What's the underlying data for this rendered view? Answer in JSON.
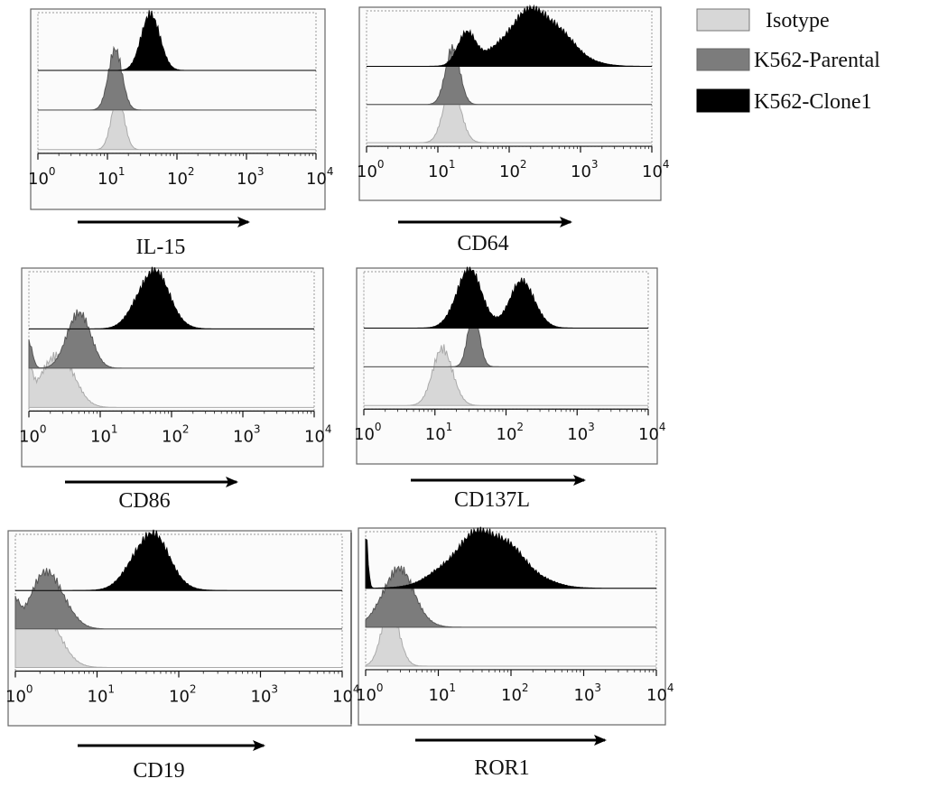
{
  "chart_data": {
    "type": "histogram-overlay",
    "x_scale": "log",
    "xlim": [
      1,
      10000
    ],
    "x_ticks": [
      {
        "base": "10",
        "exp": "0"
      },
      {
        "base": "10",
        "exp": "1"
      },
      {
        "base": "10",
        "exp": "2"
      },
      {
        "base": "10",
        "exp": "3"
      },
      {
        "base": "10",
        "exp": "4"
      }
    ],
    "legend": [
      {
        "name": "Isotype",
        "color": "#d7d7d7"
      },
      {
        "name": "K562-Parental",
        "color": "#7c7c7c"
      },
      {
        "name": "K562-Clone1",
        "color": "#000000"
      }
    ],
    "panels": [
      {
        "label": "IL-15",
        "series": {
          "isotype": {
            "peaks": [
              [
                14,
                0.9,
                0.09
              ]
            ]
          },
          "parental": {
            "peaks": [
              [
                13,
                0.95,
                0.1
              ]
            ]
          },
          "clone1": {
            "peaks": [
              [
                42,
                0.95,
                0.13
              ]
            ]
          }
        }
      },
      {
        "label": "CD64",
        "series": {
          "isotype": {
            "peaks": [
              [
                16,
                0.95,
                0.12
              ]
            ]
          },
          "parental": {
            "peaks": [
              [
                16,
                0.95,
                0.1
              ]
            ]
          },
          "clone1": {
            "peaks": [
              [
                25,
                0.55,
                0.12
              ],
              [
                230,
                0.95,
                0.4
              ]
            ]
          }
        }
      },
      {
        "label": "CD86",
        "series": {
          "isotype": {
            "peaks": [
              [
                2.5,
                0.9,
                0.22
              ],
              [
                1.0,
                0.5,
                0.05
              ]
            ]
          },
          "parental": {
            "peaks": [
              [
                5,
                0.95,
                0.16
              ],
              [
                1.0,
                0.45,
                0.05
              ]
            ]
          },
          "clone1": {
            "peaks": [
              [
                55,
                0.95,
                0.22
              ]
            ]
          }
        }
      },
      {
        "label": "CD137L",
        "series": {
          "isotype": {
            "peaks": [
              [
                13,
                0.95,
                0.14
              ]
            ]
          },
          "parental": {
            "peaks": [
              [
                35,
                0.95,
                0.08
              ]
            ]
          },
          "clone1": {
            "peaks": [
              [
                30,
                0.95,
                0.18
              ],
              [
                170,
                0.75,
                0.18
              ]
            ]
          }
        }
      },
      {
        "label": "CD19",
        "series": {
          "isotype": {
            "peaks": [
              [
                2,
                0.95,
                0.22
              ],
              [
                1.0,
                0.55,
                0.05
              ]
            ]
          },
          "parental": {
            "peaks": [
              [
                2.5,
                0.95,
                0.2
              ],
              [
                1.0,
                0.4,
                0.05
              ]
            ]
          },
          "clone1": {
            "peaks": [
              [
                45,
                0.95,
                0.22
              ]
            ]
          }
        }
      },
      {
        "label": "ROR1",
        "series": {
          "isotype": {
            "peaks": [
              [
                2.2,
                0.95,
                0.12
              ]
            ]
          },
          "parental": {
            "peaks": [
              [
                2.8,
                0.95,
                0.22
              ]
            ]
          },
          "clone1": {
            "peaks": [
              [
                45,
                0.95,
                0.45
              ],
              [
                1.0,
                0.9,
                0.03
              ]
            ]
          }
        }
      }
    ]
  }
}
